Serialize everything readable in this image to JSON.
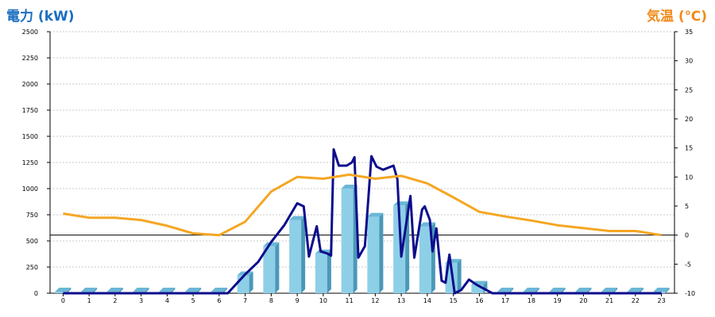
{
  "chart_data": {
    "type": "bar+line",
    "left_axis": {
      "title": "電力 (kW)",
      "ylim": [
        0,
        2500
      ],
      "ticks": [
        "0",
        "250",
        "500",
        "750",
        "1000",
        "1250",
        "1500",
        "1750",
        "2000",
        "2250",
        "2500"
      ]
    },
    "right_axis": {
      "title": "気温 (℃)",
      "ylim": [
        -10,
        35
      ],
      "ticks": [
        "-10",
        "-5",
        "0",
        "5",
        "10",
        "15",
        "20",
        "25",
        "30",
        "35"
      ]
    },
    "x_ticks": [
      "0",
      "1",
      "2",
      "3",
      "4",
      "5",
      "6",
      "7",
      "8",
      "9",
      "10",
      "11",
      "12",
      "13",
      "14",
      "15",
      "16",
      "17",
      "18",
      "19",
      "20",
      "21",
      "22",
      "23"
    ],
    "x_range": [
      -0.5,
      23.5
    ],
    "grid": true,
    "reference_line": {
      "axis": "right",
      "value": 0
    },
    "bars": {
      "axis": "left",
      "color": "#8ecfe8",
      "values": [
        10,
        10,
        10,
        10,
        10,
        10,
        10,
        170,
        450,
        700,
        380,
        1000,
        730,
        840,
        640,
        290,
        80,
        10,
        10,
        10,
        10,
        10,
        10,
        10
      ]
    },
    "series": [
      {
        "axis": "left",
        "color": "#0d0d8c",
        "points": [
          [
            0,
            0
          ],
          [
            1,
            0
          ],
          [
            2,
            0
          ],
          [
            3,
            0
          ],
          [
            4,
            0
          ],
          [
            5,
            0
          ],
          [
            6,
            0
          ],
          [
            6.33,
            0
          ],
          [
            7.0,
            180
          ],
          [
            7.5,
            300
          ],
          [
            8.0,
            490
          ],
          [
            8.5,
            650
          ],
          [
            9.0,
            860
          ],
          [
            9.25,
            830
          ],
          [
            9.45,
            350
          ],
          [
            9.75,
            640
          ],
          [
            9.9,
            400
          ],
          [
            10.15,
            380
          ],
          [
            10.3,
            360
          ],
          [
            10.4,
            1375
          ],
          [
            10.6,
            1220
          ],
          [
            10.9,
            1220
          ],
          [
            11.1,
            1250
          ],
          [
            11.2,
            1300
          ],
          [
            11.35,
            340
          ],
          [
            11.6,
            450
          ],
          [
            11.85,
            1310
          ],
          [
            12.05,
            1210
          ],
          [
            12.3,
            1180
          ],
          [
            12.7,
            1220
          ],
          [
            12.85,
            1090
          ],
          [
            13.0,
            350
          ],
          [
            13.35,
            930
          ],
          [
            13.5,
            340
          ],
          [
            13.8,
            800
          ],
          [
            13.9,
            830
          ],
          [
            14.1,
            700
          ],
          [
            14.2,
            400
          ],
          [
            14.35,
            620
          ],
          [
            14.55,
            120
          ],
          [
            14.7,
            100
          ],
          [
            14.85,
            370
          ],
          [
            15.05,
            0
          ],
          [
            15.3,
            30
          ],
          [
            15.6,
            130
          ],
          [
            15.9,
            80
          ],
          [
            16.5,
            0
          ],
          [
            17,
            0
          ],
          [
            18,
            0
          ],
          [
            19,
            0
          ],
          [
            20,
            0
          ],
          [
            21,
            0
          ],
          [
            22,
            0
          ],
          [
            23,
            0
          ]
        ]
      },
      {
        "axis": "right",
        "color": "#f5a623",
        "values": [
          3.7,
          3.0,
          3.0,
          2.6,
          1.6,
          0.3,
          0.0,
          2.3,
          7.5,
          10.0,
          9.7,
          10.4,
          9.7,
          10.2,
          8.9,
          6.5,
          4.0,
          3.2,
          2.5,
          1.7,
          1.2,
          0.7,
          0.7,
          0.0
        ]
      }
    ]
  }
}
